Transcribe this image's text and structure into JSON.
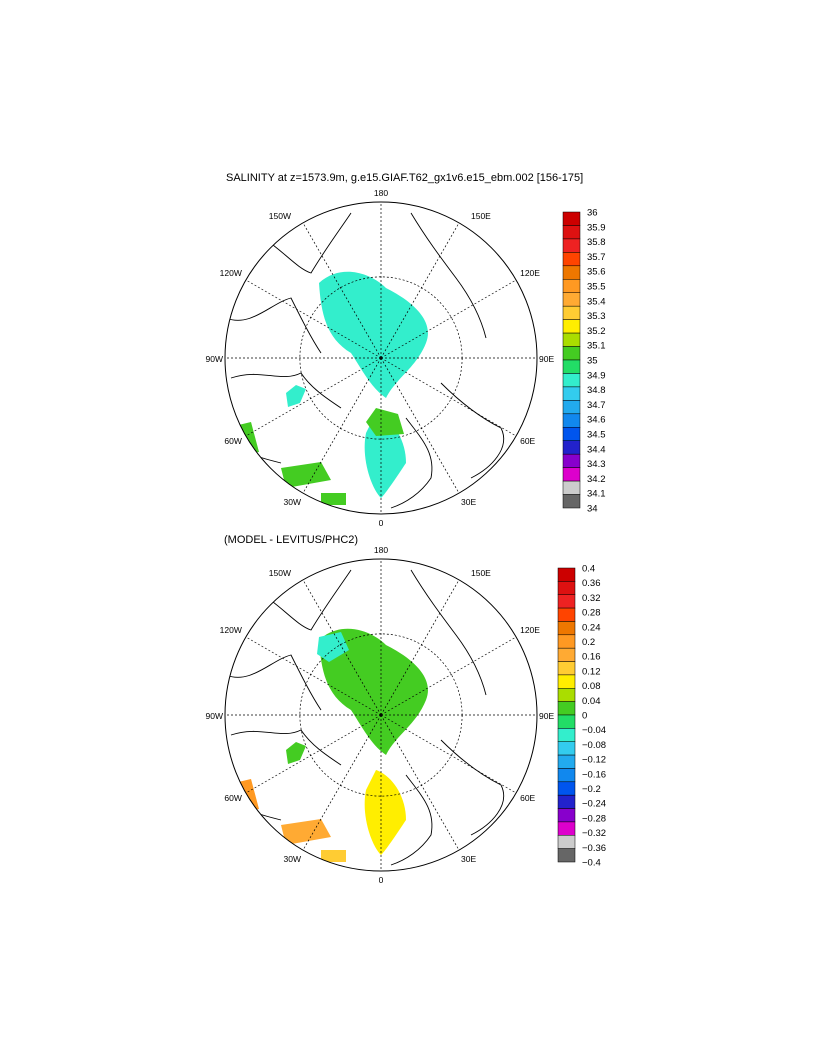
{
  "figure": {
    "title": "SALINITY at z=1573.9m, g.e15.GIAF.T62_gx1v6.e15_ebm.002 [156-175]",
    "lower_title": "(MODEL - LEVITUS/PHC2)"
  },
  "map_labels": {
    "north": "180",
    "south": "0",
    "east": "90E",
    "west": "90W",
    "ne1": "150E",
    "ne2": "120E",
    "nw1": "150W",
    "nw2": "120W",
    "se1": "60E",
    "se2": "30E",
    "sw1": "60W",
    "sw2": "30W"
  },
  "colors": {
    "land_outline": "#000000",
    "background": "#ffffff"
  },
  "chart_data": [
    {
      "type": "heatmap",
      "title": "SALINITY at z=1573.9m, g.e15.GIAF.T62_gx1v6.e15_ebm.002 [156-175]",
      "projection": "north-polar-stereographic",
      "dominant_value_range": [
        34.9,
        35.0
      ],
      "colorbar": {
        "labels": [
          "36",
          "35.9",
          "35.8",
          "35.7",
          "35.6",
          "35.5",
          "35.4",
          "35.3",
          "35.2",
          "35.1",
          "35",
          "34.9",
          "34.8",
          "34.7",
          "34.6",
          "34.5",
          "34.4",
          "34.3",
          "34.2",
          "34.1",
          "34"
        ],
        "colors": [
          "#cc0000",
          "#dd1111",
          "#ee2222",
          "#ff4400",
          "#ee7700",
          "#ff9922",
          "#ffaa33",
          "#ffcc33",
          "#ffee00",
          "#aadd00",
          "#44cc22",
          "#22dd66",
          "#33eecc",
          "#33ccee",
          "#22aaee",
          "#1188ee",
          "#0055ee",
          "#2222cc",
          "#8800cc",
          "#dd00cc",
          "#cccccc",
          "#666666"
        ]
      }
    },
    {
      "type": "heatmap",
      "title": "(MODEL - LEVITUS/PHC2)",
      "projection": "north-polar-stereographic",
      "dominant_value_range": [
        0.04,
        0.16
      ],
      "colorbar": {
        "labels": [
          "0.4",
          "0.36",
          "0.32",
          "0.28",
          "0.24",
          "0.2",
          "0.16",
          "0.12",
          "0.08",
          "0.04",
          "0",
          "−0.04",
          "−0.08",
          "−0.12",
          "−0.16",
          "−0.2",
          "−0.24",
          "−0.28",
          "−0.32",
          "−0.36",
          "−0.4"
        ],
        "colors": [
          "#cc0000",
          "#dd1111",
          "#ee2222",
          "#ff4400",
          "#ee7700",
          "#ff9922",
          "#ffaa33",
          "#ffcc33",
          "#ffee00",
          "#aadd00",
          "#44cc22",
          "#22dd66",
          "#33eecc",
          "#33ccee",
          "#22aaee",
          "#1188ee",
          "#0055ee",
          "#2222cc",
          "#8800cc",
          "#dd00cc",
          "#cccccc",
          "#666666"
        ]
      }
    }
  ]
}
